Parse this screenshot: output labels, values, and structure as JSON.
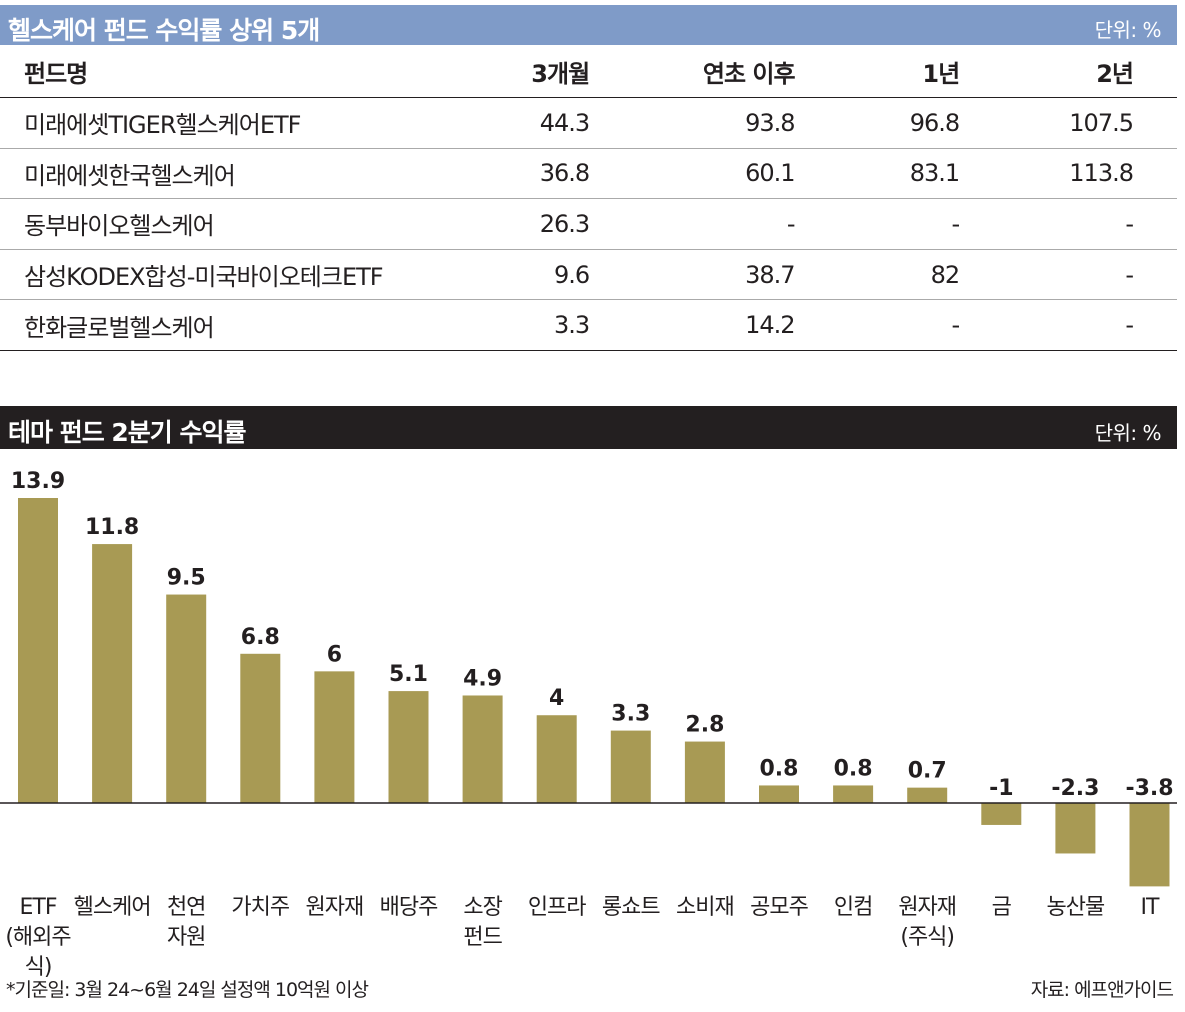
{
  "table": {
    "title": "헬스케어 펀드 수익률 상위 5개",
    "unit": "단위: %",
    "headers": [
      "펀드명",
      "3개월",
      "연초 이후",
      "1년",
      "2년"
    ],
    "rows": [
      [
        "미래에셋TIGER헬스케어ETF",
        "44.3",
        "93.8",
        "96.8",
        "107.5"
      ],
      [
        "미래에셋한국헬스케어",
        "36.8",
        "60.1",
        "83.1",
        "113.8"
      ],
      [
        "동부바이오헬스케어",
        "26.3",
        "-",
        "-",
        "-"
      ],
      [
        "삼성KODEX합성-미국바이오테크ETF",
        "9.6",
        "38.7",
        "82",
        "-"
      ],
      [
        "한화글로벌헬스케어",
        "3.3",
        "14.2",
        "-",
        "-"
      ]
    ]
  },
  "chart_title": "테마 펀드 2분기 수익률",
  "chart_unit": "단위: %",
  "chart_data": {
    "type": "bar",
    "title": "테마 펀드 2분기 수익률",
    "categories": [
      "ETF (해외주식)",
      "헬스케어",
      "천연 자원",
      "가치주",
      "원자재",
      "배당주",
      "소장 펀드",
      "인프라",
      "롱쇼트",
      "소비재",
      "공모주",
      "인컴",
      "원자재 (주식)",
      "금",
      "농산물",
      "IT"
    ],
    "category_lines": [
      [
        "ETF",
        "(해외주식)"
      ],
      [
        "헬스케어"
      ],
      [
        "천연",
        "자원"
      ],
      [
        "가치주"
      ],
      [
        "원자재"
      ],
      [
        "배당주"
      ],
      [
        "소장",
        "펀드"
      ],
      [
        "인프라"
      ],
      [
        "롱쇼트"
      ],
      [
        "소비재"
      ],
      [
        "공모주"
      ],
      [
        "인컴"
      ],
      [
        "원자재",
        "(주식)"
      ],
      [
        "금"
      ],
      [
        "농산물"
      ],
      [
        "IT"
      ]
    ],
    "values": [
      13.9,
      11.8,
      9.5,
      6.8,
      6,
      5.1,
      4.9,
      4,
      3.3,
      2.8,
      0.8,
      0.8,
      0.7,
      -1,
      -2.3,
      -3.8
    ],
    "value_labels": [
      "13.9",
      "11.8",
      "9.5",
      "6.8",
      "6",
      "5.1",
      "4.9",
      "4",
      "3.3",
      "2.8",
      "0.8",
      "0.8",
      "0.7",
      "-1",
      "-2.3",
      "-3.8"
    ],
    "ylim": [
      -3.8,
      13.9
    ],
    "bar_color": "#a89a54",
    "grid": false,
    "legend": "none"
  },
  "footnote": "*기준일: 3월 24~6월 24일 설정액 10억원 이상",
  "source": "자료: 에프앤가이드",
  "colors": {
    "table_header": "#7f9bc8",
    "chart_header": "#231f20"
  }
}
